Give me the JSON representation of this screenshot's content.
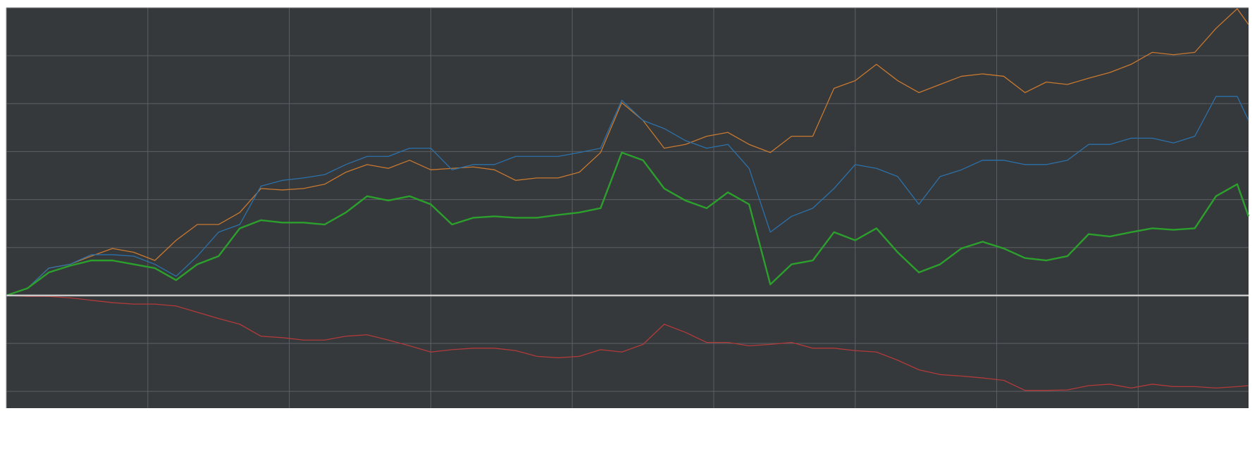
{
  "chart_data": {
    "type": "line",
    "x": [
      0,
      0.15,
      0.3,
      0.45,
      0.6,
      0.75,
      0.9,
      1.05,
      1.2,
      1.35,
      1.5,
      1.65,
      1.8,
      1.95,
      2.1,
      2.25,
      2.4,
      2.55,
      2.7,
      2.85,
      3,
      3.15,
      3.3,
      3.45,
      3.6,
      3.75,
      3.9,
      4.05,
      4.2,
      4.35,
      4.5,
      4.65,
      4.8,
      4.95,
      5.1,
      5.25,
      5.4,
      5.55,
      5.7,
      5.85,
      6,
      6.15,
      6.3,
      6.45,
      6.6,
      6.75,
      6.9,
      7.05,
      7.2,
      7.35,
      7.5,
      7.65,
      7.8,
      7.95,
      8.1,
      8.25,
      8.4,
      8.55,
      8.7,
      8.78
    ],
    "series": [
      {
        "color": "#c8782f",
        "width": 1.3,
        "values": [
          0,
          0.15,
          0.57,
          0.65,
          0.82,
          0.98,
          0.9,
          0.73,
          1.15,
          1.48,
          1.48,
          1.73,
          2.23,
          2.2,
          2.23,
          2.32,
          2.57,
          2.73,
          2.65,
          2.82,
          2.62,
          2.65,
          2.68,
          2.62,
          2.4,
          2.45,
          2.45,
          2.57,
          2.98,
          4.02,
          3.65,
          3.07,
          3.15,
          3.32,
          3.4,
          3.15,
          2.98,
          3.32,
          3.32,
          4.32,
          4.48,
          4.82,
          4.48,
          4.23,
          4.4,
          4.57,
          4.62,
          4.57,
          4.23,
          4.45,
          4.4,
          4.53,
          4.65,
          4.82,
          5.07,
          5.02,
          5.07,
          5.57,
          5.98,
          5.65
        ]
      },
      {
        "color": "#2b71aa",
        "width": 1.3,
        "values": [
          0,
          0.15,
          0.57,
          0.65,
          0.85,
          0.85,
          0.82,
          0.65,
          0.4,
          0.82,
          1.32,
          1.48,
          2.28,
          2.4,
          2.45,
          2.52,
          2.73,
          2.9,
          2.9,
          3.07,
          3.07,
          2.62,
          2.73,
          2.73,
          2.9,
          2.9,
          2.9,
          2.98,
          3.07,
          4.07,
          3.65,
          3.48,
          3.23,
          3.07,
          3.15,
          2.65,
          1.32,
          1.65,
          1.82,
          2.23,
          2.73,
          2.65,
          2.48,
          1.9,
          2.48,
          2.62,
          2.82,
          2.82,
          2.73,
          2.73,
          2.82,
          3.15,
          3.15,
          3.28,
          3.28,
          3.18,
          3.32,
          4.15,
          4.15,
          3.65
        ]
      },
      {
        "color": "#2ca02c",
        "width": 2.4,
        "values": [
          0,
          0.15,
          0.48,
          0.62,
          0.73,
          0.73,
          0.65,
          0.57,
          0.32,
          0.65,
          0.82,
          1.4,
          1.57,
          1.52,
          1.52,
          1.48,
          1.73,
          2.07,
          1.98,
          2.07,
          1.9,
          1.48,
          1.62,
          1.65,
          1.62,
          1.62,
          1.68,
          1.73,
          1.82,
          2.98,
          2.82,
          2.23,
          1.98,
          1.82,
          2.15,
          1.9,
          0.23,
          0.65,
          0.73,
          1.32,
          1.15,
          1.4,
          0.9,
          0.48,
          0.65,
          0.98,
          1.12,
          0.98,
          0.78,
          0.73,
          0.82,
          1.28,
          1.23,
          1.32,
          1.4,
          1.37,
          1.4,
          2.07,
          2.32,
          1.65
        ]
      },
      {
        "color": "#b23a3a",
        "width": 1.3,
        "values": [
          0,
          -0.02,
          -0.02,
          -0.05,
          -0.1,
          -0.15,
          -0.18,
          -0.18,
          -0.22,
          -0.35,
          -0.48,
          -0.6,
          -0.85,
          -0.88,
          -0.93,
          -0.93,
          -0.85,
          -0.82,
          -0.93,
          -1.05,
          -1.18,
          -1.13,
          -1.1,
          -1.1,
          -1.15,
          -1.27,
          -1.3,
          -1.27,
          -1.13,
          -1.18,
          -1.02,
          -0.6,
          -0.77,
          -0.98,
          -0.98,
          -1.05,
          -1.02,
          -0.98,
          -1.1,
          -1.1,
          -1.15,
          -1.18,
          -1.35,
          -1.55,
          -1.65,
          -1.68,
          -1.72,
          -1.77,
          -1.98,
          -1.98,
          -1.97,
          -1.88,
          -1.85,
          -1.93,
          -1.85,
          -1.9,
          -1.9,
          -1.93,
          -1.9,
          -1.88
        ]
      }
    ],
    "xlim": [
      0,
      8.78
    ],
    "xticks": [
      1,
      2,
      3,
      4,
      5,
      6,
      7,
      8
    ],
    "ylim": [
      -2.35,
      6
    ],
    "yticks": [
      -2,
      -1,
      0,
      1,
      2,
      3,
      4,
      5,
      6
    ],
    "grid": true,
    "background": "#36393c",
    "grid_color": "#5c5f63",
    "zero_line_color": "#c8c8c8"
  }
}
